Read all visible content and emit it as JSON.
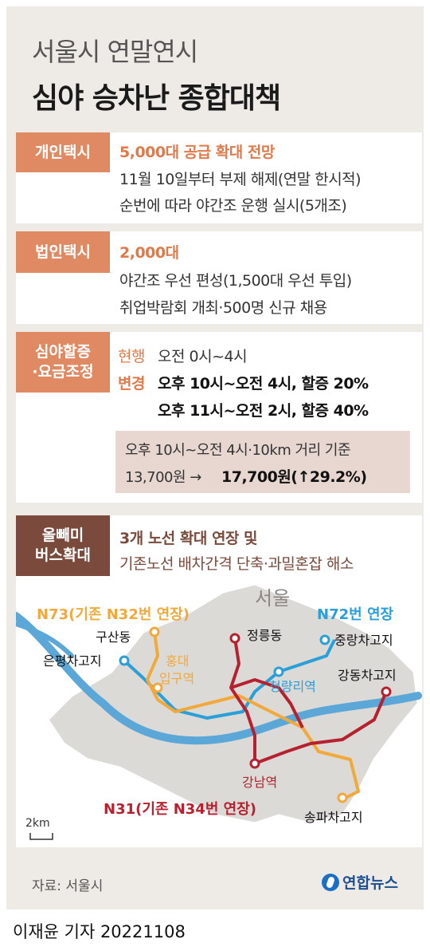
{
  "header": {
    "subtitle": "서울시 연말연시",
    "title": "심야 승차난 종합대책"
  },
  "sections": {
    "personal_taxi": {
      "tag": "개인택시",
      "headline": "5,000대 공급 확대 전망",
      "line1": "11월 10일부터 부제 해제(연말 한시적)",
      "line2": "순번에 따라 야간조 운행 실시(5개조)"
    },
    "corporate_taxi": {
      "tag": "법인택시",
      "headline": "2,000대",
      "line1": "야간조 우선 편성(1,500대 우선 투입)",
      "line2": "취업박람회 개최·500명 신규 채용"
    },
    "surcharge": {
      "tag_line1": "심야할증",
      "tag_line2": "·요금조정",
      "current_label": "현행",
      "current_value": "오전 0시~4시",
      "change_label": "변경",
      "change_value1": "오후 10시~오전 4시, 할증 20%",
      "change_value2": "오후 11시~오전 2시, 할증 40%",
      "box_line1": "오후 10시~오전 4시·10km 거리 기준",
      "box_old": "13,700원 →",
      "box_new": "17,700원(↑29.2%)"
    },
    "bus": {
      "tag_line1": "올빼미",
      "tag_line2": "버스확대",
      "headline": "3개 노선 확대 연장 및",
      "line1": "기존노선 배차간격 단축·과밀혼잡 해소"
    }
  },
  "map": {
    "city_label": "서울",
    "route_n73": "N73(기존 N32번 연장)",
    "route_n72": "N72번 연장",
    "route_n31": "N31(기존 N34번 연장)",
    "stop_gusan": "구산동",
    "stop_eunpyeong": "은평차고지",
    "stop_hongdae1": "홍대",
    "stop_hongdae2": "입구역",
    "stop_jeongneung": "정릉동",
    "stop_junglang": "중랑차고지",
    "stop_cheongnyangni": "청량리역",
    "stop_gangdong": "강동차고지",
    "stop_gangnam": "강남역",
    "stop_songpa": "송파차고지",
    "scale": "2km",
    "colors": {
      "n73": "#f2a93b",
      "n72": "#2a9fd8",
      "n31": "#b5212e",
      "river": "#5aa7d8"
    }
  },
  "footer": {
    "source": "자료: 서울시",
    "logo": "연합뉴스",
    "credit": "이재윤 기자  20221108"
  }
}
